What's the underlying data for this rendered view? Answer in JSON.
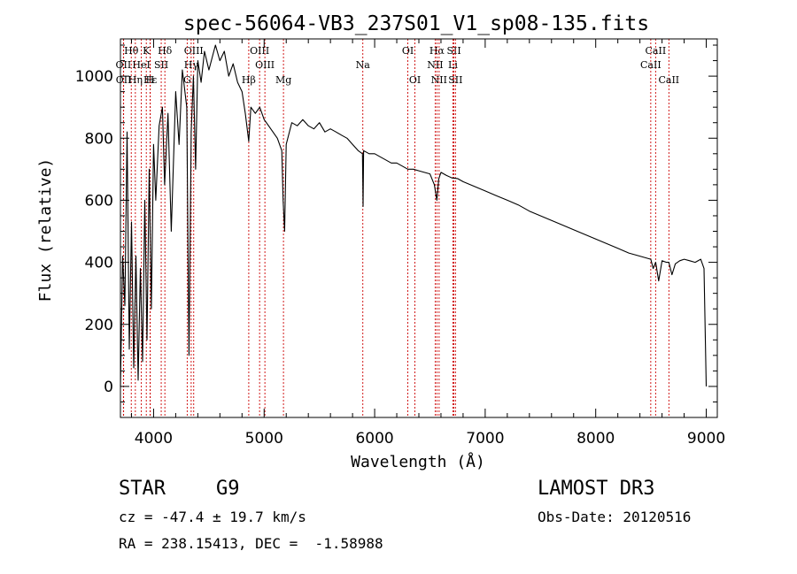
{
  "chart_data": {
    "type": "line",
    "title": "spec-56064-VB3_237S01_V1_sp08-135.fits",
    "xlabel": "Wavelength (Å)",
    "ylabel": "Flux (relative)",
    "xlim": [
      3700,
      9100
    ],
    "ylim": [
      -100,
      1120
    ],
    "xticks": [
      4000,
      5000,
      6000,
      7000,
      8000,
      9000
    ],
    "yticks": [
      0,
      200,
      400,
      600,
      800,
      1000
    ],
    "grid": false,
    "line_color": "#000000",
    "marker_color": "#cc0000",
    "series": [
      {
        "name": "spectrum",
        "x": [
          3700,
          3720,
          3740,
          3760,
          3780,
          3800,
          3820,
          3840,
          3860,
          3880,
          3900,
          3920,
          3940,
          3960,
          3980,
          4000,
          4020,
          4050,
          4080,
          4100,
          4130,
          4160,
          4200,
          4230,
          4260,
          4300,
          4320,
          4340,
          4360,
          4380,
          4400,
          4430,
          4460,
          4500,
          4530,
          4560,
          4600,
          4640,
          4680,
          4720,
          4760,
          4800,
          4830,
          4861,
          4880,
          4920,
          4960,
          5000,
          5040,
          5080,
          5120,
          5160,
          5172,
          5185,
          5200,
          5250,
          5300,
          5350,
          5400,
          5450,
          5500,
          5550,
          5600,
          5650,
          5700,
          5750,
          5800,
          5850,
          5890,
          5895,
          5900,
          5950,
          6000,
          6050,
          6100,
          6150,
          6200,
          6250,
          6300,
          6350,
          6400,
          6450,
          6500,
          6540,
          6563,
          6580,
          6600,
          6650,
          6700,
          6750,
          6800,
          6900,
          7000,
          7100,
          7200,
          7300,
          7400,
          7500,
          7600,
          7700,
          7800,
          7900,
          8000,
          8100,
          8200,
          8300,
          8400,
          8498,
          8520,
          8542,
          8570,
          8600,
          8640,
          8662,
          8690,
          8720,
          8760,
          8800,
          8850,
          8900,
          8950,
          8980,
          9000
        ],
        "y": [
          0,
          420,
          260,
          820,
          120,
          530,
          60,
          420,
          20,
          380,
          80,
          600,
          150,
          700,
          250,
          780,
          600,
          840,
          900,
          650,
          880,
          500,
          950,
          780,
          1020,
          900,
          100,
          820,
          1000,
          700,
          1050,
          980,
          1080,
          1020,
          1060,
          1100,
          1050,
          1080,
          1000,
          1040,
          980,
          950,
          880,
          790,
          900,
          880,
          900,
          860,
          840,
          820,
          800,
          760,
          600,
          500,
          780,
          850,
          840,
          860,
          840,
          830,
          850,
          820,
          830,
          820,
          810,
          800,
          780,
          760,
          750,
          580,
          760,
          750,
          750,
          740,
          730,
          720,
          720,
          710,
          700,
          700,
          695,
          690,
          685,
          650,
          600,
          670,
          690,
          680,
          672,
          670,
          660,
          645,
          630,
          615,
          600,
          585,
          565,
          550,
          535,
          520,
          505,
          490,
          475,
          460,
          445,
          430,
          420,
          410,
          380,
          400,
          340,
          405,
          400,
          400,
          360,
          395,
          405,
          410,
          405,
          400,
          410,
          380,
          0
        ]
      }
    ],
    "line_markers": [
      {
        "label": "Hθ",
        "x": 3798,
        "row": 1
      },
      {
        "label": "K",
        "x": 3934,
        "row": 1
      },
      {
        "label": "Hδ",
        "x": 4102,
        "row": 1
      },
      {
        "label": "OIII",
        "x": 4363,
        "row": 1
      },
      {
        "label": "OIII",
        "x": 4959,
        "row": 1
      },
      {
        "label": "OI",
        "x": 6300,
        "row": 1
      },
      {
        "label": "Hα",
        "x": 6563,
        "row": 1
      },
      {
        "label": "SII",
        "x": 6717,
        "row": 1
      },
      {
        "label": "CaII",
        "x": 8542,
        "row": 1
      },
      {
        "label": "OII",
        "x": 3727,
        "row": 2
      },
      {
        "label": "HeI",
        "x": 3889,
        "row": 2
      },
      {
        "label": "SII",
        "x": 4069,
        "row": 2
      },
      {
        "label": "Hγ",
        "x": 4340,
        "row": 2
      },
      {
        "label": "OIII",
        "x": 5007,
        "row": 2
      },
      {
        "label": "Na",
        "x": 5893,
        "row": 2
      },
      {
        "label": "NII",
        "x": 6548,
        "row": 2
      },
      {
        "label": "Li",
        "x": 6708,
        "row": 2
      },
      {
        "label": "CaII",
        "x": 8498,
        "row": 2
      },
      {
        "label": "OII",
        "x": 3729,
        "row": 3
      },
      {
        "label": "Hε",
        "x": 3970,
        "row": 3
      },
      {
        "label": "Hη",
        "x": 3835,
        "row": 3
      },
      {
        "label": "H",
        "x": 3968,
        "row": 3
      },
      {
        "label": "G",
        "x": 4304,
        "row": 3
      },
      {
        "label": "Hβ",
        "x": 4861,
        "row": 3
      },
      {
        "label": "Mg",
        "x": 5175,
        "row": 3
      },
      {
        "label": "OI",
        "x": 6364,
        "row": 3
      },
      {
        "label": "NII",
        "x": 6583,
        "row": 3
      },
      {
        "label": "SII",
        "x": 6731,
        "row": 3
      },
      {
        "label": "CaII",
        "x": 8662,
        "row": 3
      }
    ]
  },
  "info": {
    "object_class": "STAR",
    "subclass": "G9",
    "survey": "LAMOST DR3",
    "cz": "cz = -47.4 ± 19.7 km/s",
    "obs_date": "Obs-Date: 20120516",
    "coords": "RA = 238.15413, DEC =  -1.58988"
  }
}
